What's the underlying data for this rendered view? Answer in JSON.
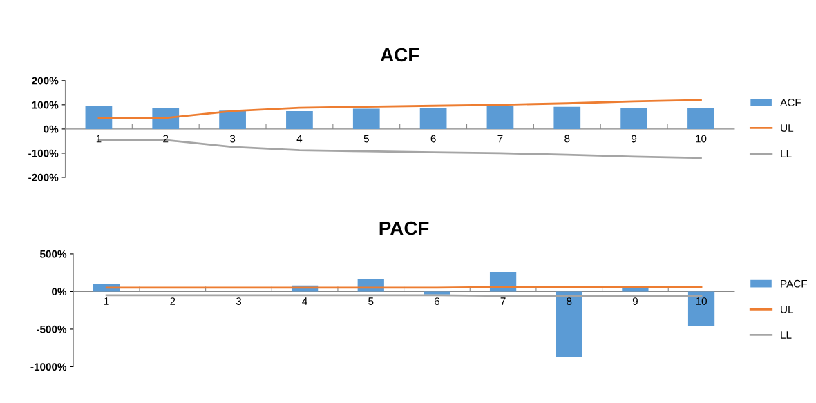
{
  "chart_data": [
    {
      "type": "bar",
      "title": "ACF",
      "categories": [
        "1",
        "2",
        "3",
        "4",
        "5",
        "6",
        "7",
        "8",
        "9",
        "10"
      ],
      "series": [
        {
          "name": "ACF",
          "color": "#5b9bd5",
          "values": [
            96,
            86,
            76,
            74,
            84,
            86,
            96,
            92,
            86,
            86
          ]
        },
        {
          "name": "UL",
          "type": "line",
          "color": "#ed7d31",
          "values": [
            46,
            46,
            74,
            88,
            92,
            96,
            100,
            106,
            114,
            120
          ]
        },
        {
          "name": "LL",
          "type": "line",
          "color": "#a5a5a5",
          "values": [
            -46,
            -46,
            -74,
            -88,
            -92,
            -96,
            -100,
            -106,
            -114,
            -120
          ]
        }
      ],
      "ylim": [
        -200,
        200
      ],
      "yticks": [
        {
          "value": 200,
          "label": "200%"
        },
        {
          "value": 100,
          "label": "100%"
        },
        {
          "value": 0,
          "label": "0%"
        },
        {
          "value": -100,
          "label": "-100%"
        },
        {
          "value": -200,
          "label": "-200%"
        }
      ],
      "grid": false,
      "legend": "right"
    },
    {
      "type": "bar",
      "title": "PACF",
      "categories": [
        "1",
        "2",
        "3",
        "4",
        "5",
        "6",
        "7",
        "8",
        "9",
        "10"
      ],
      "series": [
        {
          "name": "PACF",
          "color": "#5b9bd5",
          "values": [
            100,
            0,
            0,
            80,
            160,
            -40,
            260,
            -870,
            50,
            -460
          ]
        },
        {
          "name": "UL",
          "type": "line",
          "color": "#ed7d31",
          "values": [
            50,
            50,
            50,
            50,
            50,
            50,
            60,
            60,
            60,
            60
          ]
        },
        {
          "name": "LL",
          "type": "line",
          "color": "#a5a5a5",
          "values": [
            -50,
            -50,
            -50,
            -50,
            -50,
            -50,
            -60,
            -60,
            -60,
            -60
          ]
        }
      ],
      "ylim": [
        -1000,
        500
      ],
      "yticks": [
        {
          "value": 500,
          "label": "500%"
        },
        {
          "value": 0,
          "label": "0%"
        },
        {
          "value": -500,
          "label": "-500%"
        },
        {
          "value": -1000,
          "label": "-1000%"
        }
      ],
      "grid": false,
      "legend": "right"
    }
  ]
}
